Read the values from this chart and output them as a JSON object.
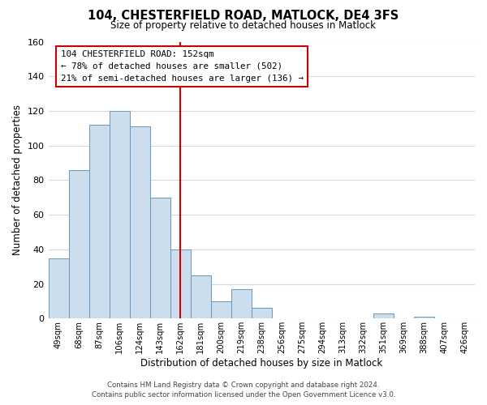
{
  "title": "104, CHESTERFIELD ROAD, MATLOCK, DE4 3FS",
  "subtitle": "Size of property relative to detached houses in Matlock",
  "xlabel": "Distribution of detached houses by size in Matlock",
  "ylabel": "Number of detached properties",
  "bar_labels": [
    "49sqm",
    "68sqm",
    "87sqm",
    "106sqm",
    "124sqm",
    "143sqm",
    "162sqm",
    "181sqm",
    "200sqm",
    "219sqm",
    "238sqm",
    "256sqm",
    "275sqm",
    "294sqm",
    "313sqm",
    "332sqm",
    "351sqm",
    "369sqm",
    "388sqm",
    "407sqm",
    "426sqm"
  ],
  "bar_values": [
    35,
    86,
    112,
    120,
    111,
    70,
    40,
    25,
    10,
    17,
    6,
    0,
    0,
    0,
    0,
    0,
    3,
    0,
    1,
    0,
    0
  ],
  "bar_color": "#ccdded",
  "bar_edge_color": "#6699bb",
  "vline_index": 6,
  "vline_color": "#cc0000",
  "ylim": [
    0,
    160
  ],
  "yticks": [
    0,
    20,
    40,
    60,
    80,
    100,
    120,
    140,
    160
  ],
  "annotation_line1": "104 CHESTERFIELD ROAD: 152sqm",
  "annotation_line2": "← 78% of detached houses are smaller (502)",
  "annotation_line3": "21% of semi-detached houses are larger (136) →",
  "footer_line1": "Contains HM Land Registry data © Crown copyright and database right 2024.",
  "footer_line2": "Contains public sector information licensed under the Open Government Licence v3.0.",
  "background_color": "#ffffff",
  "grid_color": "#d0d8e0"
}
